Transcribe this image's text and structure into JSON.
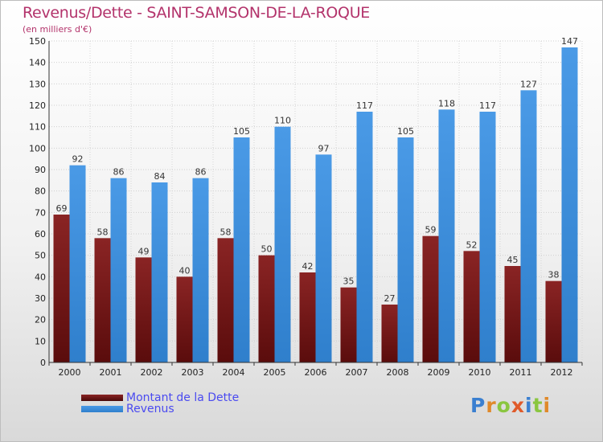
{
  "header": {
    "title": "Revenus/Dette - SAINT-SAMSON-DE-LA-ROQUE",
    "subtitle": "(en milliers d'€)"
  },
  "colors": {
    "dette": "#7a1a1a",
    "revenus": "#3d8fdb",
    "title": "#b3336b",
    "legend_text": "#4a4af0"
  },
  "chart_data": {
    "type": "bar",
    "title": "Revenus/Dette - SAINT-SAMSON-DE-LA-ROQUE",
    "subtitle": "(en milliers d'€)",
    "categories": [
      "2000",
      "2001",
      "2002",
      "2003",
      "2004",
      "2005",
      "2006",
      "2007",
      "2008",
      "2009",
      "2010",
      "2011",
      "2012"
    ],
    "series": [
      {
        "name": "Montant de la Dette",
        "values": [
          69,
          58,
          49,
          40,
          58,
          50,
          42,
          35,
          27,
          59,
          52,
          45,
          38
        ]
      },
      {
        "name": "Revenus",
        "values": [
          92,
          86,
          84,
          86,
          105,
          110,
          97,
          117,
          105,
          118,
          117,
          127,
          147
        ]
      }
    ],
    "ylim": [
      0,
      150
    ],
    "yticks": [
      0,
      10,
      20,
      30,
      40,
      50,
      60,
      70,
      80,
      90,
      100,
      110,
      120,
      130,
      140,
      150
    ],
    "grid": true,
    "legend_position": "bottom-left"
  },
  "legend": {
    "items": [
      {
        "label": "Montant de la Dette"
      },
      {
        "label": "Revenus"
      }
    ]
  },
  "logo": {
    "letters": [
      "P",
      "r",
      "o",
      "x",
      "i",
      "t",
      "i"
    ],
    "colors": [
      "#3a7fd0",
      "#e0892a",
      "#8ac640",
      "#e05a2a",
      "#3a7fd0",
      "#8ac640",
      "#e0892a"
    ]
  }
}
